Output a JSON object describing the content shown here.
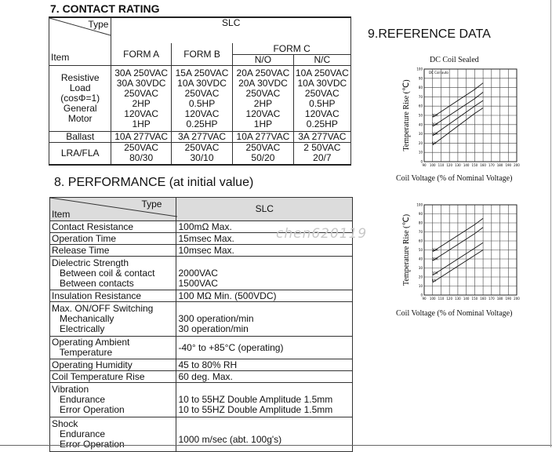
{
  "section7": {
    "title": "7. CONTACT RATING",
    "header": {
      "type": "Type",
      "item": "Item",
      "slc": "SLC",
      "form_a": "FORM A",
      "form_b": "FORM B",
      "form_c": "FORM C",
      "no": "N/O",
      "nc": "N/C"
    },
    "rows": [
      {
        "item": "Resistive\nLoad\n(cosΦ=1)\nGeneral\nMotor",
        "a": "30A 250VAC\n30A 30VDC\n250VAC\n2HP\n120VAC\n1HP",
        "b": "15A 250VAC\n10A 30VDC\n250VAC\n0.5HP\n120VAC\n0.25HP",
        "no": "20A 250VAC\n20A 30VDC\n250VAC\n2HP\n120VAC\n1HP",
        "nc": "10A 250VAC\n10A 30VDC\n250VAC\n0.5HP\n120VAC\n0.25HP"
      },
      {
        "item": "Ballast",
        "a": "10A 277VAC",
        "b": "3A 277VAC",
        "no": "10A 277VAC",
        "nc": "3A 277VAC"
      },
      {
        "item": "LRA/FLA",
        "a": "250VAC\n80/30",
        "b": "250VAC 30/10",
        "no": "250VAC\n50/20",
        "nc": "2 50VAC\n20/7"
      }
    ]
  },
  "section8": {
    "title": "8. PERFORMANCE (at initial value)",
    "header": {
      "type": "Type",
      "item": "Item",
      "slc": "SLC"
    },
    "rows": [
      {
        "item": "Contact Resistance",
        "value": "100mΩ Max."
      },
      {
        "item": "Operation Time",
        "value": "15msec Max."
      },
      {
        "item": "Release Time",
        "value": "10msec Max."
      },
      {
        "item": "Dielectric Strength\n   Between coil & contact\n   Between contacts",
        "value": "\n2000VAC\n1500VAC"
      },
      {
        "item": "Insulation Resistance",
        "value": "100 MΩ Min. (500VDC)"
      },
      {
        "item": "Max. ON/OFF Switching\n   Mechanically\n   Electrically",
        "value": "\n300 operation/min\n30 operation/min"
      },
      {
        "item": "Operating Ambient\n   Temperature",
        "value": "-40° to +85°C (operating)"
      },
      {
        "item": "Operating Humidity",
        "value": "45 to 80% RH"
      },
      {
        "item": "Coil Temperature Rise",
        "value": "60 deg. Max."
      },
      {
        "item": "Vibration\n   Endurance\n   Error Operation",
        "value": "\n10 to 55HZ Double Amplitude 1.5mm\n10 to 55HZ Double Amplitude 1.5mm"
      },
      {
        "item": "Shock\n   Endurance\n   Error Operation",
        "value": "\n1000 m/sec (abt. 100g's)\n"
      }
    ]
  },
  "section9": {
    "title": "9.REFERENCE DATA",
    "watermark": "chen620119"
  },
  "chart_data": [
    {
      "type": "line",
      "title": "DC Coil Sealed",
      "xlabel": "Coil Voltage (% of Nominal Voltage)",
      "ylabel": "Temperature Rise (℃)",
      "annotation": "DC Coil auto",
      "xlim": [
        90,
        200
      ],
      "ylim": [
        0,
        100
      ],
      "x_ticks": [
        "90",
        "100",
        "110",
        "120",
        "130",
        "140",
        "150",
        "160",
        "170",
        "180",
        "190",
        "200"
      ],
      "y_ticks": [
        "0",
        "10",
        "20",
        "30",
        "40",
        "50",
        "60",
        "70",
        "80",
        "90",
        "100"
      ],
      "series": [
        {
          "name": "30A",
          "x": [
            100,
            150,
            160
          ],
          "y": [
            48,
            78,
            85
          ]
        },
        {
          "name": "20A",
          "x": [
            100,
            150,
            160
          ],
          "y": [
            38,
            68,
            75
          ]
        },
        {
          "name": "10A",
          "x": [
            100,
            150,
            160
          ],
          "y": [
            28,
            60,
            66
          ]
        },
        {
          "name": "0A",
          "x": [
            100,
            150,
            160
          ],
          "y": [
            18,
            52,
            58
          ]
        }
      ]
    },
    {
      "type": "line",
      "title": "",
      "xlabel": "Coil Voltage (% of Nominal Voltage)",
      "ylabel": "Temperature Rise (℃)",
      "xlim": [
        90,
        200
      ],
      "ylim": [
        0,
        100
      ],
      "x_ticks": [
        "90",
        "100",
        "110",
        "120",
        "130",
        "140",
        "150",
        "160",
        "170",
        "180",
        "190",
        "200"
      ],
      "y_ticks": [
        "0",
        "10",
        "20",
        "30",
        "40",
        "50",
        "60",
        "70",
        "80",
        "90",
        "100"
      ],
      "series": [
        {
          "name": "30A",
          "x": [
            100,
            150,
            160
          ],
          "y": [
            48,
            78,
            85
          ]
        },
        {
          "name": "20A",
          "x": [
            100,
            150,
            160
          ],
          "y": [
            38,
            68,
            75
          ]
        },
        {
          "name": "10A",
          "x": [
            100,
            150,
            160
          ],
          "y": [
            22,
            52,
            58
          ]
        },
        {
          "name": "0A",
          "x": [
            100,
            150,
            160
          ],
          "y": [
            14,
            44,
            50
          ]
        }
      ]
    }
  ],
  "colors": {
    "header_bg": "#dcdcdc",
    "line": "#222222"
  }
}
